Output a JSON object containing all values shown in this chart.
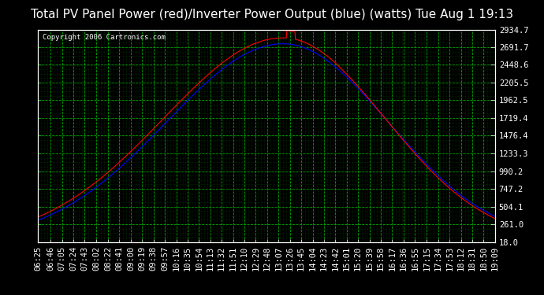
{
  "title": "Total PV Panel Power (red)/Inverter Power Output (blue) (watts) Tue Aug 1 19:13",
  "copyright_text": "Copyright 2006 Cartronics.com",
  "ylabel_right_ticks": [
    18.0,
    261.0,
    504.1,
    747.2,
    990.2,
    1233.3,
    1476.4,
    1719.4,
    1962.5,
    2205.5,
    2448.6,
    2691.7,
    2934.7
  ],
  "x_tick_labels": [
    "06:25",
    "06:46",
    "07:05",
    "07:24",
    "07:43",
    "08:02",
    "08:22",
    "08:41",
    "09:00",
    "09:19",
    "09:38",
    "09:57",
    "10:16",
    "10:35",
    "10:54",
    "11:13",
    "11:32",
    "11:51",
    "12:10",
    "12:29",
    "12:48",
    "13:07",
    "13:26",
    "13:45",
    "14:04",
    "14:23",
    "14:42",
    "15:01",
    "15:20",
    "15:39",
    "15:58",
    "16:17",
    "16:36",
    "16:55",
    "17:15",
    "17:34",
    "17:53",
    "18:12",
    "18:31",
    "18:50",
    "19:09"
  ],
  "ymin": 18.0,
  "ymax": 2934.7,
  "bg_color": "#000000",
  "plot_bg_color": "#000000",
  "grid_color_major": "#00aa00",
  "grid_color_minor": "#005500",
  "line_color_red": "#ff0000",
  "line_color_blue": "#0000ff",
  "title_color": "#ffffff",
  "tick_label_color": "#ffffff",
  "copyright_color": "#ffffff",
  "title_fontsize": 11,
  "tick_fontsize": 7.5
}
